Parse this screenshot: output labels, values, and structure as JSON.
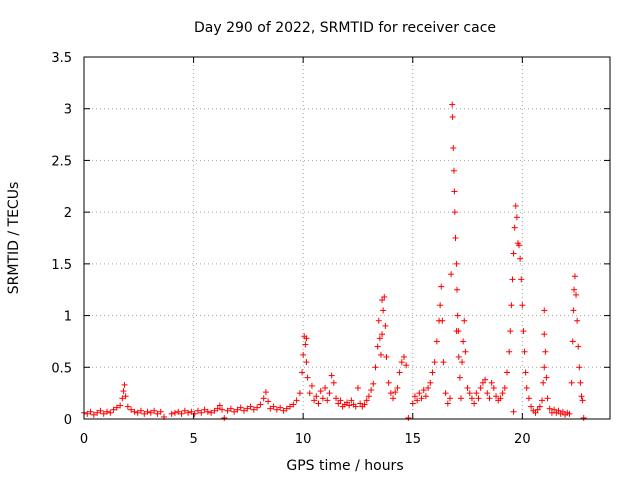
{
  "chart_data": {
    "type": "scatter",
    "title": "Day 290 of 2022, SRMTID for receiver cace",
    "xlabel": "GPS time / hours",
    "ylabel": "SRMTID / TECUs",
    "xlim": [
      0,
      24
    ],
    "ylim": [
      0,
      3.5
    ],
    "xticks": [
      0,
      5,
      10,
      15,
      20
    ],
    "xtick_labels": [
      "0",
      "5",
      "10",
      "15",
      "20"
    ],
    "yticks": [
      0,
      0.5,
      1,
      1.5,
      2,
      2.5,
      3,
      3.5
    ],
    "ytick_labels": [
      "0",
      "0.5",
      "1",
      "1.5",
      "2",
      "2.5",
      "3",
      "3.5"
    ],
    "grid": true,
    "marker": "+",
    "color": "#ff0000",
    "series": [
      {
        "name": "SRMTID",
        "points": [
          [
            0.0,
            0.06
          ],
          [
            0.15,
            0.05
          ],
          [
            0.3,
            0.07
          ],
          [
            0.45,
            0.04
          ],
          [
            0.6,
            0.06
          ],
          [
            0.75,
            0.08
          ],
          [
            0.9,
            0.05
          ],
          [
            1.05,
            0.07
          ],
          [
            1.2,
            0.06
          ],
          [
            1.35,
            0.09
          ],
          [
            1.5,
            0.11
          ],
          [
            1.65,
            0.13
          ],
          [
            1.75,
            0.2
          ],
          [
            1.8,
            0.27
          ],
          [
            1.85,
            0.33
          ],
          [
            1.9,
            0.22
          ],
          [
            2.0,
            0.12
          ],
          [
            2.15,
            0.09
          ],
          [
            2.3,
            0.07
          ],
          [
            2.45,
            0.06
          ],
          [
            2.6,
            0.08
          ],
          [
            2.75,
            0.05
          ],
          [
            2.9,
            0.07
          ],
          [
            3.05,
            0.06
          ],
          [
            3.2,
            0.08
          ],
          [
            3.35,
            0.05
          ],
          [
            3.5,
            0.07
          ],
          [
            3.65,
            0.02
          ],
          [
            4.0,
            0.05
          ],
          [
            4.15,
            0.06
          ],
          [
            4.3,
            0.07
          ],
          [
            4.45,
            0.05
          ],
          [
            4.6,
            0.08
          ],
          [
            4.75,
            0.06
          ],
          [
            4.9,
            0.07
          ],
          [
            5.05,
            0.05
          ],
          [
            5.2,
            0.08
          ],
          [
            5.35,
            0.06
          ],
          [
            5.5,
            0.09
          ],
          [
            5.65,
            0.07
          ],
          [
            5.8,
            0.06
          ],
          [
            5.95,
            0.08
          ],
          [
            6.1,
            0.1
          ],
          [
            6.2,
            0.13
          ],
          [
            6.3,
            0.09
          ],
          [
            6.4,
            0.01
          ],
          [
            6.55,
            0.08
          ],
          [
            6.7,
            0.1
          ],
          [
            6.85,
            0.07
          ],
          [
            7.0,
            0.09
          ],
          [
            7.15,
            0.11
          ],
          [
            7.3,
            0.08
          ],
          [
            7.45,
            0.1
          ],
          [
            7.6,
            0.12
          ],
          [
            7.75,
            0.09
          ],
          [
            7.9,
            0.11
          ],
          [
            8.05,
            0.14
          ],
          [
            8.2,
            0.2
          ],
          [
            8.3,
            0.26
          ],
          [
            8.4,
            0.17
          ],
          [
            8.5,
            0.1
          ],
          [
            8.65,
            0.12
          ],
          [
            8.8,
            0.09
          ],
          [
            8.95,
            0.11
          ],
          [
            9.1,
            0.08
          ],
          [
            9.25,
            0.1
          ],
          [
            9.4,
            0.12
          ],
          [
            9.55,
            0.14
          ],
          [
            9.7,
            0.18
          ],
          [
            9.85,
            0.25
          ],
          [
            9.95,
            0.45
          ],
          [
            10.0,
            0.62
          ],
          [
            10.05,
            0.8
          ],
          [
            10.1,
            0.72
          ],
          [
            10.15,
            0.55
          ],
          [
            10.2,
            0.4
          ],
          [
            10.3,
            0.25
          ],
          [
            10.4,
            0.32
          ],
          [
            10.5,
            0.18
          ],
          [
            10.6,
            0.22
          ],
          [
            10.7,
            0.15
          ],
          [
            10.8,
            0.27
          ],
          [
            10.9,
            0.2
          ],
          [
            11.0,
            0.3
          ],
          [
            11.1,
            0.18
          ],
          [
            11.2,
            0.25
          ],
          [
            11.3,
            0.42
          ],
          [
            11.4,
            0.35
          ],
          [
            11.5,
            0.2
          ],
          [
            11.6,
            0.15
          ],
          [
            11.7,
            0.18
          ],
          [
            11.8,
            0.12
          ],
          [
            11.9,
            0.14
          ],
          [
            12.0,
            0.16
          ],
          [
            12.1,
            0.13
          ],
          [
            12.2,
            0.18
          ],
          [
            12.3,
            0.14
          ],
          [
            12.4,
            0.12
          ],
          [
            12.5,
            0.3
          ],
          [
            12.6,
            0.15
          ],
          [
            12.7,
            0.12
          ],
          [
            12.8,
            0.14
          ],
          [
            12.9,
            0.18
          ],
          [
            13.0,
            0.22
          ],
          [
            13.1,
            0.28
          ],
          [
            13.2,
            0.34
          ],
          [
            13.3,
            0.5
          ],
          [
            13.4,
            0.7
          ],
          [
            13.45,
            0.95
          ],
          [
            13.5,
            0.78
          ],
          [
            13.55,
            0.62
          ],
          [
            13.6,
            0.82
          ],
          [
            13.65,
            1.05
          ],
          [
            13.7,
            1.18
          ],
          [
            13.75,
            0.9
          ],
          [
            13.8,
            0.6
          ],
          [
            13.9,
            0.35
          ],
          [
            14.0,
            0.25
          ],
          [
            14.1,
            0.2
          ],
          [
            14.2,
            0.26
          ],
          [
            14.3,
            0.3
          ],
          [
            14.4,
            0.45
          ],
          [
            14.5,
            0.55
          ],
          [
            14.6,
            0.6
          ],
          [
            14.7,
            0.52
          ],
          [
            14.8,
            0.01
          ],
          [
            15.0,
            0.15
          ],
          [
            15.1,
            0.22
          ],
          [
            15.2,
            0.18
          ],
          [
            15.3,
            0.25
          ],
          [
            15.4,
            0.2
          ],
          [
            15.5,
            0.28
          ],
          [
            15.6,
            0.22
          ],
          [
            15.7,
            0.3
          ],
          [
            15.8,
            0.35
          ],
          [
            15.9,
            0.45
          ],
          [
            16.0,
            0.55
          ],
          [
            16.1,
            0.75
          ],
          [
            16.2,
            0.95
          ],
          [
            16.25,
            1.1
          ],
          [
            16.3,
            1.28
          ],
          [
            16.35,
            0.95
          ],
          [
            16.4,
            0.55
          ],
          [
            16.5,
            0.25
          ],
          [
            16.6,
            0.15
          ],
          [
            16.7,
            0.2
          ],
          [
            16.75,
            1.4
          ],
          [
            16.8,
            3.04
          ],
          [
            16.82,
            2.92
          ],
          [
            16.85,
            2.62
          ],
          [
            16.88,
            2.4
          ],
          [
            16.9,
            2.2
          ],
          [
            16.92,
            2.0
          ],
          [
            16.95,
            1.75
          ],
          [
            17.0,
            1.5
          ],
          [
            17.02,
            1.25
          ],
          [
            17.05,
            1.0
          ],
          [
            17.08,
            0.85
          ],
          [
            17.1,
            0.6
          ],
          [
            17.15,
            0.4
          ],
          [
            17.2,
            0.2
          ],
          [
            17.25,
            0.55
          ],
          [
            17.3,
            0.75
          ],
          [
            17.35,
            0.95
          ],
          [
            17.4,
            0.65
          ],
          [
            17.5,
            0.3
          ],
          [
            17.6,
            0.25
          ],
          [
            17.7,
            0.2
          ],
          [
            17.8,
            0.15
          ],
          [
            17.9,
            0.25
          ],
          [
            18.0,
            0.2
          ],
          [
            18.1,
            0.3
          ],
          [
            18.2,
            0.35
          ],
          [
            18.3,
            0.38
          ],
          [
            18.4,
            0.25
          ],
          [
            18.5,
            0.2
          ],
          [
            18.6,
            0.35
          ],
          [
            18.7,
            0.3
          ],
          [
            18.8,
            0.22
          ],
          [
            18.9,
            0.18
          ],
          [
            19.0,
            0.2
          ],
          [
            19.1,
            0.25
          ],
          [
            19.2,
            0.3
          ],
          [
            19.3,
            0.45
          ],
          [
            19.4,
            0.65
          ],
          [
            19.45,
            0.85
          ],
          [
            19.5,
            1.1
          ],
          [
            19.55,
            1.35
          ],
          [
            19.6,
            1.6
          ],
          [
            19.65,
            1.85
          ],
          [
            19.7,
            2.06
          ],
          [
            19.75,
            1.95
          ],
          [
            19.8,
            1.7
          ],
          [
            19.85,
            1.68
          ],
          [
            19.9,
            1.55
          ],
          [
            19.95,
            1.35
          ],
          [
            20.0,
            1.1
          ],
          [
            20.05,
            0.85
          ],
          [
            20.1,
            0.65
          ],
          [
            20.15,
            0.45
          ],
          [
            20.2,
            0.3
          ],
          [
            20.3,
            0.2
          ],
          [
            20.4,
            0.12
          ],
          [
            20.5,
            0.08
          ],
          [
            20.6,
            0.06
          ],
          [
            20.7,
            0.09
          ],
          [
            20.8,
            0.12
          ],
          [
            20.9,
            0.18
          ],
          [
            20.95,
            0.35
          ],
          [
            21.0,
            0.5
          ],
          [
            21.05,
            0.65
          ],
          [
            21.1,
            0.4
          ],
          [
            21.15,
            0.2
          ],
          [
            21.25,
            0.1
          ],
          [
            21.35,
            0.06
          ],
          [
            21.45,
            0.09
          ],
          [
            21.55,
            0.06
          ],
          [
            21.65,
            0.08
          ],
          [
            21.75,
            0.05
          ],
          [
            21.85,
            0.07
          ],
          [
            21.95,
            0.04
          ],
          [
            22.05,
            0.06
          ],
          [
            22.15,
            0.05
          ],
          [
            22.25,
            0.35
          ],
          [
            22.3,
            0.75
          ],
          [
            22.33,
            1.05
          ],
          [
            22.36,
            1.25
          ],
          [
            22.4,
            1.38
          ],
          [
            22.45,
            1.2
          ],
          [
            22.5,
            0.95
          ],
          [
            22.55,
            0.7
          ],
          [
            22.6,
            0.5
          ],
          [
            22.65,
            0.35
          ],
          [
            22.7,
            0.22
          ],
          [
            22.75,
            0.18
          ],
          [
            22.8,
            0.01
          ],
          [
            19.6,
            0.07
          ],
          [
            21.0,
            1.05
          ],
          [
            21.0,
            0.82
          ],
          [
            17.0,
            0.85
          ],
          [
            13.6,
            1.15
          ],
          [
            10.15,
            0.78
          ]
        ]
      }
    ]
  }
}
